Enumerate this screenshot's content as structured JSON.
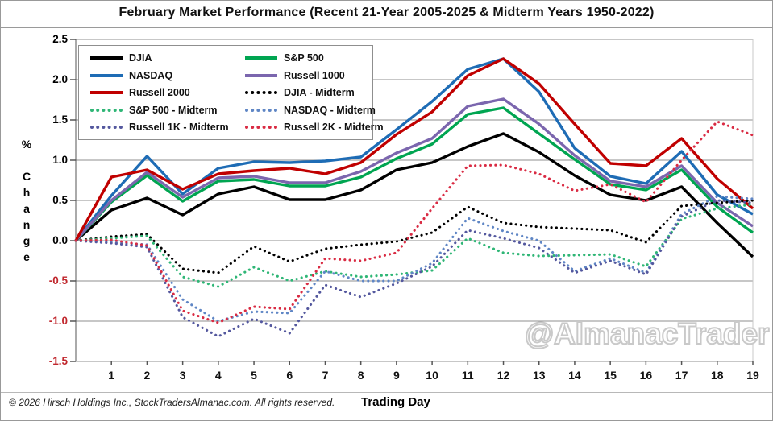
{
  "header": {
    "title": "February Market Performance (Recent 21-Year 2005-2025 & Midterm Years 1950-2022)"
  },
  "watermark": {
    "text": "@AlmanacTrader"
  },
  "footer": {
    "copyright": "© 2026 Hirsch Holdings Inc., StockTradersAlmanac.com. All rights reserved."
  },
  "chart_data": {
    "type": "line",
    "title": "February Market Performance (Recent 21-Year 2005-2025 & Midterm Years 1950-2022)",
    "xlabel": "Trading Day",
    "ylabel": "% Change",
    "ylim": [
      -1.5,
      2.5
    ],
    "grid": true,
    "legend_position": "top-left",
    "days": [
      0,
      1,
      2,
      3,
      4,
      5,
      6,
      7,
      8,
      9,
      10,
      11,
      12,
      13,
      14,
      15,
      16,
      17,
      18,
      19
    ],
    "x_ticks": [
      1,
      2,
      3,
      4,
      5,
      6,
      7,
      8,
      9,
      10,
      11,
      12,
      13,
      14,
      15,
      16,
      17,
      18,
      19
    ],
    "y_ticks": [
      2.5,
      2.0,
      1.5,
      1.0,
      0.5,
      0.0,
      -0.5,
      -1.0,
      -1.5
    ],
    "axis": {
      "neg_tick_color": "#c0272d",
      "pos_tick_color": "#000000"
    },
    "series": [
      {
        "name": "DJIA",
        "color": "#000000",
        "style": "solid",
        "values": [
          0,
          0.38,
          0.53,
          0.32,
          0.58,
          0.67,
          0.51,
          0.51,
          0.63,
          0.88,
          0.97,
          1.17,
          1.33,
          1.1,
          0.81,
          0.57,
          0.5,
          0.67,
          0.22,
          -0.2
        ]
      },
      {
        "name": "S&P 500",
        "color": "#00a551",
        "style": "solid",
        "values": [
          0,
          0.48,
          0.81,
          0.49,
          0.74,
          0.76,
          0.68,
          0.68,
          0.79,
          1.02,
          1.2,
          1.57,
          1.65,
          1.33,
          1.01,
          0.7,
          0.63,
          0.88,
          0.42,
          0.1
        ]
      },
      {
        "name": "NASDAQ",
        "color": "#1e6cb5",
        "style": "solid",
        "values": [
          0,
          0.56,
          1.05,
          0.58,
          0.9,
          0.98,
          0.97,
          0.99,
          1.04,
          1.38,
          1.73,
          2.13,
          2.26,
          1.85,
          1.15,
          0.8,
          0.71,
          1.11,
          0.57,
          0.33
        ]
      },
      {
        "name": "Russell 1000",
        "color": "#7b66ae",
        "style": "solid",
        "values": [
          0,
          0.5,
          0.85,
          0.54,
          0.78,
          0.8,
          0.72,
          0.72,
          0.86,
          1.09,
          1.27,
          1.67,
          1.76,
          1.45,
          1.06,
          0.74,
          0.67,
          0.93,
          0.47,
          0.18
        ]
      },
      {
        "name": "Russell 2000",
        "color": "#c00000",
        "style": "solid",
        "values": [
          0,
          0.79,
          0.88,
          0.64,
          0.83,
          0.87,
          0.9,
          0.83,
          0.97,
          1.32,
          1.6,
          2.05,
          2.26,
          1.95,
          1.45,
          0.96,
          0.93,
          1.27,
          0.77,
          0.4
        ]
      },
      {
        "name": "DJIA - Midterm",
        "color": "#000000",
        "style": "dotted",
        "values": [
          0,
          0.05,
          0.08,
          -0.35,
          -0.4,
          -0.07,
          -0.26,
          -0.1,
          -0.05,
          -0.01,
          0.1,
          0.42,
          0.22,
          0.17,
          0.15,
          0.13,
          -0.02,
          0.43,
          0.47,
          0.5
        ]
      },
      {
        "name": "S&P 500 - Midterm",
        "color": "#2fb676",
        "style": "dotted",
        "values": [
          0,
          0.03,
          0.06,
          -0.45,
          -0.57,
          -0.33,
          -0.5,
          -0.38,
          -0.45,
          -0.42,
          -0.37,
          0.03,
          -0.15,
          -0.19,
          -0.18,
          -0.17,
          -0.32,
          0.27,
          0.4,
          0.45
        ]
      },
      {
        "name": "NASDAQ - Midterm",
        "color": "#5f86c5",
        "style": "dotted",
        "values": [
          0,
          -0.02,
          -0.05,
          -0.73,
          -1.0,
          -0.88,
          -0.9,
          -0.38,
          -0.5,
          -0.5,
          -0.28,
          0.28,
          0.12,
          0.0,
          -0.38,
          -0.22,
          -0.4,
          0.33,
          0.55,
          0.52
        ]
      },
      {
        "name": "Russell 1K - Midterm",
        "color": "#54589e",
        "style": "dotted",
        "values": [
          0,
          -0.03,
          -0.08,
          -0.95,
          -1.19,
          -0.97,
          -1.15,
          -0.55,
          -0.7,
          -0.53,
          -0.32,
          0.13,
          0.03,
          -0.09,
          -0.4,
          -0.25,
          -0.42,
          0.3,
          0.5,
          0.47
        ]
      },
      {
        "name": "Russell 2K - Midterm",
        "color": "#d92b43",
        "style": "dotted",
        "values": [
          0,
          0.01,
          -0.06,
          -0.87,
          -1.02,
          -0.82,
          -0.85,
          -0.22,
          -0.25,
          -0.15,
          0.4,
          0.93,
          0.94,
          0.83,
          0.62,
          0.7,
          0.48,
          1.0,
          1.48,
          1.31
        ]
      }
    ]
  }
}
